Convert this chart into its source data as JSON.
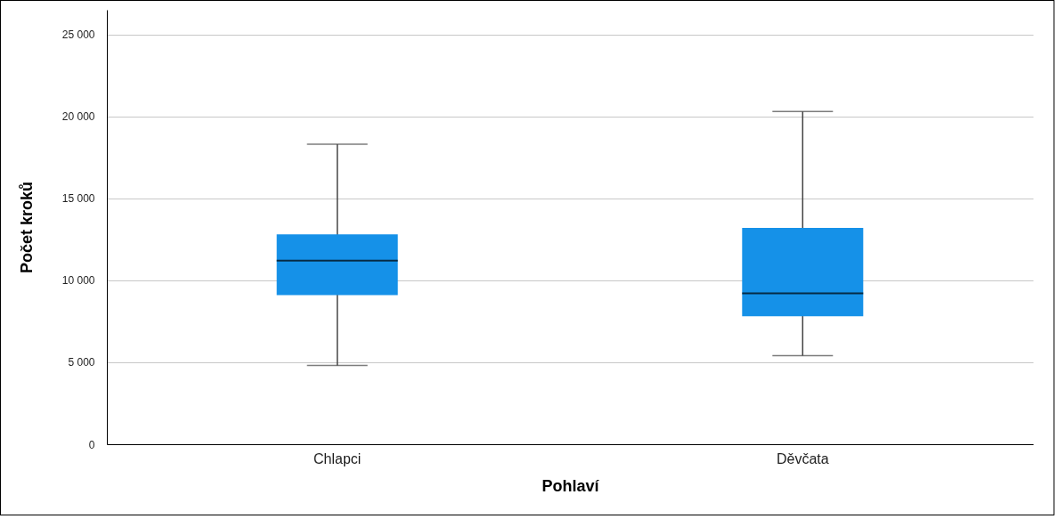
{
  "chart_data": {
    "type": "box",
    "xlabel": "Pohlaví",
    "ylabel": "Počet kroků",
    "categories": [
      "Chlapci",
      "Děvčata"
    ],
    "boxes": [
      {
        "low": 4800,
        "q1": 9100,
        "median": 11200,
        "q3": 12800,
        "high": 18300
      },
      {
        "low": 5400,
        "q1": 7800,
        "median": 9200,
        "q3": 13200,
        "high": 20300
      }
    ],
    "color": "#1591e8",
    "ylim": [
      0,
      26500
    ],
    "yticks": [
      {
        "value": 0,
        "label": "0"
      },
      {
        "value": 5000,
        "label": "5 000"
      },
      {
        "value": 10000,
        "label": "10 000"
      },
      {
        "value": 15000,
        "label": "15 000"
      },
      {
        "value": 20000,
        "label": "20 000"
      },
      {
        "value": 25000,
        "label": "25 000"
      }
    ],
    "grid": "y"
  }
}
